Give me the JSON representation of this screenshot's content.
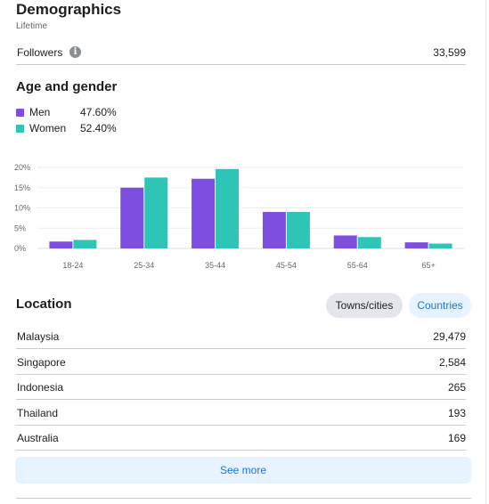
{
  "header": {
    "title": "Demographics",
    "subtitle": "Lifetime"
  },
  "followers": {
    "label": "Followers",
    "value": "33,599",
    "info_icon": "info-icon"
  },
  "age_gender": {
    "title": "Age and gender",
    "legend": [
      {
        "name": "Men",
        "value": "47.60%",
        "color": "#7e4ee0"
      },
      {
        "name": "Women",
        "value": "52.40%",
        "color": "#2ec4b6"
      }
    ]
  },
  "chart_data": {
    "type": "bar",
    "categories": [
      "18-24",
      "25-34",
      "35-44",
      "45-54",
      "55-64",
      "65+"
    ],
    "series": [
      {
        "name": "Men",
        "values": [
          1.7,
          15.0,
          17.2,
          9.0,
          3.2,
          1.5
        ],
        "color": "#7e4ee0"
      },
      {
        "name": "Women",
        "values": [
          2.1,
          17.5,
          19.6,
          9.0,
          2.8,
          1.2
        ],
        "color": "#2ec4b6"
      }
    ],
    "y_ticks": [
      "0%",
      "5%",
      "10%",
      "15%",
      "20%"
    ],
    "ylim": [
      0,
      20
    ],
    "grid": true
  },
  "location": {
    "title": "Location",
    "tabs": [
      {
        "label": "Towns/cities",
        "active": true
      },
      {
        "label": "Countries",
        "active": false
      }
    ],
    "rows": [
      {
        "name": "Malaysia",
        "value": "29,479"
      },
      {
        "name": "Singapore",
        "value": "2,584"
      },
      {
        "name": "Indonesia",
        "value": "265"
      },
      {
        "name": "Thailand",
        "value": "193"
      },
      {
        "name": "Australia",
        "value": "169"
      }
    ],
    "see_more": "See more"
  }
}
